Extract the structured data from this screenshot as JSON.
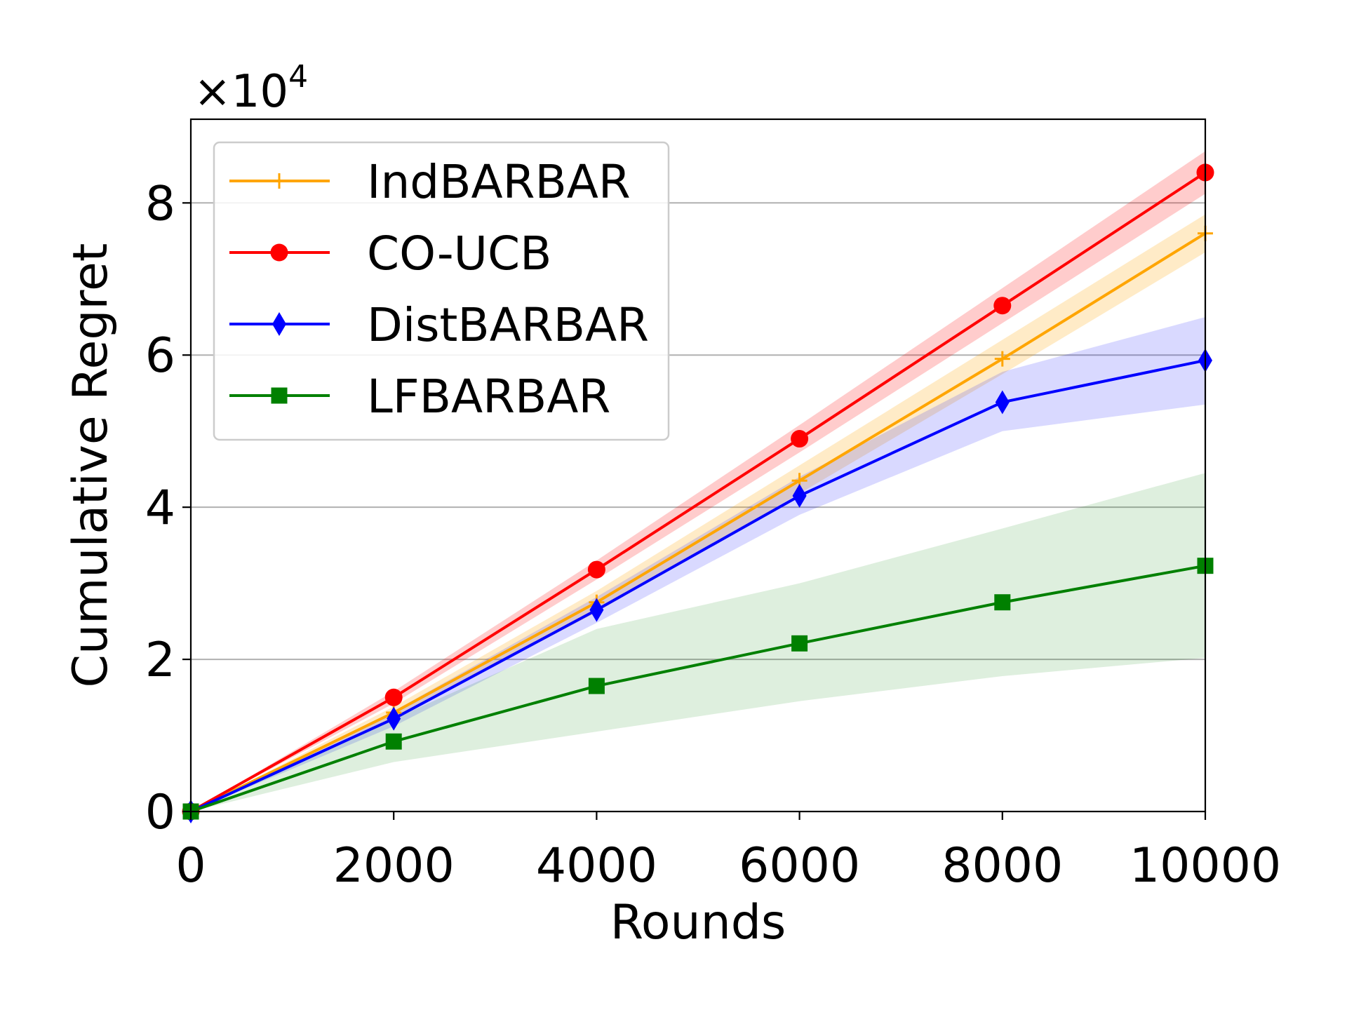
{
  "chart_data": {
    "type": "line",
    "title": "",
    "xlabel": "Rounds",
    "ylabel": "Cumulative Regret",
    "y_multiplier": "×10",
    "y_multiplier_exp": "4",
    "xlim": [
      0,
      10000
    ],
    "ylim": [
      0,
      9.1
    ],
    "xticks": [
      0,
      2000,
      4000,
      6000,
      8000,
      10000
    ],
    "xtick_labels": [
      "0",
      "2000",
      "4000",
      "6000",
      "8000",
      "10000"
    ],
    "yticks": [
      0,
      2,
      4,
      6,
      8
    ],
    "ytick_labels": [
      "0",
      "2",
      "4",
      "6",
      "8"
    ],
    "grid": "horizontal",
    "legend_position": "top-left",
    "x": [
      0,
      2000,
      4000,
      6000,
      8000,
      10000
    ],
    "series": [
      {
        "name": "IndBARBAR",
        "color": "#ffa500",
        "marker": "plus",
        "band_alpha": 0.22,
        "values": [
          0,
          1.3,
          2.75,
          4.35,
          5.95,
          7.6
        ],
        "lower": [
          0,
          1.22,
          2.62,
          4.18,
          5.75,
          7.35
        ],
        "upper": [
          0,
          1.38,
          2.9,
          4.55,
          6.2,
          7.85
        ]
      },
      {
        "name": "CO-UCB",
        "color": "#ff0000",
        "marker": "circle",
        "band_alpha": 0.2,
        "values": [
          0,
          1.5,
          3.18,
          4.9,
          6.65,
          8.4
        ],
        "lower": [
          0,
          1.42,
          3.05,
          4.72,
          6.42,
          8.12
        ],
        "upper": [
          0,
          1.58,
          3.3,
          5.08,
          6.88,
          8.68
        ]
      },
      {
        "name": "DistBARBAR",
        "color": "#0000ff",
        "marker": "thin_diamond",
        "band_alpha": 0.15,
        "values": [
          0,
          1.22,
          2.65,
          4.15,
          5.38,
          5.93
        ],
        "lower": [
          0,
          1.12,
          2.48,
          3.9,
          5.0,
          5.35
        ],
        "upper": [
          0,
          1.32,
          2.82,
          4.4,
          5.78,
          6.5
        ]
      },
      {
        "name": "LFBARBAR",
        "color": "#008000",
        "marker": "square",
        "band_alpha": 0.13,
        "values": [
          0,
          0.92,
          1.65,
          2.21,
          2.75,
          3.23
        ],
        "lower": [
          0,
          0.65,
          1.05,
          1.45,
          1.78,
          2.02
        ],
        "upper": [
          0,
          1.22,
          2.4,
          3.0,
          3.72,
          4.45
        ]
      }
    ]
  }
}
